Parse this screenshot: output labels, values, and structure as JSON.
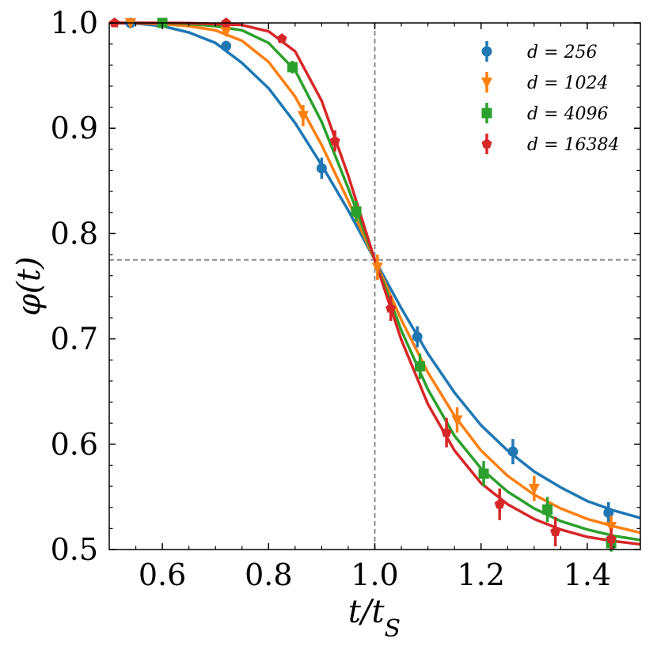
{
  "chart_data": {
    "type": "scatter",
    "xlabel": "t/tS",
    "ylabel": "φ(t)",
    "xlim": [
      0.5,
      1.5
    ],
    "ylim": [
      0.5,
      1.0
    ],
    "xticks": [
      0.6,
      0.8,
      1.0,
      1.2,
      1.4
    ],
    "xtick_labels": [
      "0.6",
      "0.8",
      "1.0",
      "1.2",
      "1.4"
    ],
    "yticks": [
      0.5,
      0.6,
      0.7,
      0.8,
      0.9,
      1.0
    ],
    "ytick_labels": [
      "0.5",
      "0.6",
      "0.7",
      "0.8",
      "0.9",
      "1.0"
    ],
    "reference_lines": {
      "x": 1.0,
      "y": 0.775,
      "style": "dashed",
      "color": "#808080"
    },
    "legend_position": "top-right",
    "grid": false,
    "series": [
      {
        "name": "d = 256",
        "color": "#1f77b4",
        "marker": "circle",
        "points": [
          {
            "x": 0.54,
            "y": 1.0,
            "err": 0.002
          },
          {
            "x": 0.72,
            "y": 0.978,
            "err": 0.005
          },
          {
            "x": 0.9,
            "y": 0.862,
            "err": 0.01
          },
          {
            "x": 1.08,
            "y": 0.702,
            "err": 0.01
          },
          {
            "x": 1.26,
            "y": 0.593,
            "err": 0.012
          },
          {
            "x": 1.44,
            "y": 0.535,
            "err": 0.01
          }
        ],
        "curve": [
          {
            "x": 0.5,
            "y": 0.9998
          },
          {
            "x": 0.55,
            "y": 0.9995
          },
          {
            "x": 0.6,
            "y": 0.997
          },
          {
            "x": 0.65,
            "y": 0.991
          },
          {
            "x": 0.7,
            "y": 0.981
          },
          {
            "x": 0.75,
            "y": 0.962
          },
          {
            "x": 0.8,
            "y": 0.938
          },
          {
            "x": 0.85,
            "y": 0.905
          },
          {
            "x": 0.9,
            "y": 0.865
          },
          {
            "x": 0.95,
            "y": 0.822
          },
          {
            "x": 1.0,
            "y": 0.775
          },
          {
            "x": 1.05,
            "y": 0.729
          },
          {
            "x": 1.1,
            "y": 0.686
          },
          {
            "x": 1.15,
            "y": 0.649
          },
          {
            "x": 1.2,
            "y": 0.618
          },
          {
            "x": 1.25,
            "y": 0.594
          },
          {
            "x": 1.3,
            "y": 0.574
          },
          {
            "x": 1.35,
            "y": 0.559
          },
          {
            "x": 1.4,
            "y": 0.546
          },
          {
            "x": 1.45,
            "y": 0.537
          },
          {
            "x": 1.5,
            "y": 0.53
          }
        ]
      },
      {
        "name": "d = 1024",
        "color": "#ff7f0e",
        "marker": "triangle-down",
        "points": [
          {
            "x": 0.54,
            "y": 1.0,
            "err": 0.002
          },
          {
            "x": 0.72,
            "y": 0.992,
            "err": 0.004
          },
          {
            "x": 0.865,
            "y": 0.912,
            "err": 0.01
          },
          {
            "x": 1.005,
            "y": 0.768,
            "err": 0.012
          },
          {
            "x": 1.155,
            "y": 0.623,
            "err": 0.012
          },
          {
            "x": 1.3,
            "y": 0.558,
            "err": 0.012
          },
          {
            "x": 1.445,
            "y": 0.522,
            "err": 0.01
          }
        ],
        "curve": [
          {
            "x": 0.5,
            "y": 1.0
          },
          {
            "x": 0.55,
            "y": 0.9998
          },
          {
            "x": 0.6,
            "y": 0.999
          },
          {
            "x": 0.65,
            "y": 0.997
          },
          {
            "x": 0.7,
            "y": 0.993
          },
          {
            "x": 0.75,
            "y": 0.983
          },
          {
            "x": 0.8,
            "y": 0.963
          },
          {
            "x": 0.85,
            "y": 0.93
          },
          {
            "x": 0.9,
            "y": 0.884
          },
          {
            "x": 0.95,
            "y": 0.831
          },
          {
            "x": 1.0,
            "y": 0.775
          },
          {
            "x": 1.05,
            "y": 0.718
          },
          {
            "x": 1.1,
            "y": 0.668
          },
          {
            "x": 1.15,
            "y": 0.627
          },
          {
            "x": 1.2,
            "y": 0.594
          },
          {
            "x": 1.25,
            "y": 0.57
          },
          {
            "x": 1.3,
            "y": 0.552
          },
          {
            "x": 1.35,
            "y": 0.539
          },
          {
            "x": 1.4,
            "y": 0.529
          },
          {
            "x": 1.45,
            "y": 0.522
          },
          {
            "x": 1.5,
            "y": 0.516
          }
        ]
      },
      {
        "name": "d = 4096",
        "color": "#2ca02c",
        "marker": "square",
        "points": [
          {
            "x": 0.6,
            "y": 1.0,
            "err": 0.002
          },
          {
            "x": 0.845,
            "y": 0.958,
            "err": 0.006
          },
          {
            "x": 0.965,
            "y": 0.821,
            "err": 0.01
          },
          {
            "x": 1.085,
            "y": 0.674,
            "err": 0.012
          },
          {
            "x": 1.205,
            "y": 0.572,
            "err": 0.012
          },
          {
            "x": 1.325,
            "y": 0.538,
            "err": 0.012
          },
          {
            "x": 1.445,
            "y": 0.506,
            "err": 0.008
          }
        ],
        "curve": [
          {
            "x": 0.5,
            "y": 1.0
          },
          {
            "x": 0.55,
            "y": 1.0
          },
          {
            "x": 0.6,
            "y": 0.9998
          },
          {
            "x": 0.65,
            "y": 0.999
          },
          {
            "x": 0.7,
            "y": 0.997
          },
          {
            "x": 0.75,
            "y": 0.993
          },
          {
            "x": 0.8,
            "y": 0.981
          },
          {
            "x": 0.85,
            "y": 0.955
          },
          {
            "x": 0.9,
            "y": 0.906
          },
          {
            "x": 0.95,
            "y": 0.843
          },
          {
            "x": 1.0,
            "y": 0.775
          },
          {
            "x": 1.05,
            "y": 0.708
          },
          {
            "x": 1.1,
            "y": 0.652
          },
          {
            "x": 1.15,
            "y": 0.608
          },
          {
            "x": 1.2,
            "y": 0.577
          },
          {
            "x": 1.25,
            "y": 0.555
          },
          {
            "x": 1.3,
            "y": 0.539
          },
          {
            "x": 1.35,
            "y": 0.527
          },
          {
            "x": 1.4,
            "y": 0.519
          },
          {
            "x": 1.45,
            "y": 0.513
          },
          {
            "x": 1.5,
            "y": 0.509
          }
        ]
      },
      {
        "name": "d = 16384",
        "color": "#d62728",
        "marker": "pentagon",
        "points": [
          {
            "x": 0.51,
            "y": 1.0,
            "err": 0.002
          },
          {
            "x": 0.72,
            "y": 1.0,
            "err": 0.002
          },
          {
            "x": 0.825,
            "y": 0.985,
            "err": 0.004
          },
          {
            "x": 0.925,
            "y": 0.888,
            "err": 0.01
          },
          {
            "x": 1.03,
            "y": 0.729,
            "err": 0.012
          },
          {
            "x": 1.135,
            "y": 0.611,
            "err": 0.014
          },
          {
            "x": 1.235,
            "y": 0.543,
            "err": 0.015
          },
          {
            "x": 1.34,
            "y": 0.517,
            "err": 0.014
          },
          {
            "x": 1.445,
            "y": 0.51,
            "err": 0.01
          }
        ],
        "curve": [
          {
            "x": 0.5,
            "y": 1.0
          },
          {
            "x": 0.55,
            "y": 1.0
          },
          {
            "x": 0.6,
            "y": 1.0
          },
          {
            "x": 0.65,
            "y": 0.9998
          },
          {
            "x": 0.7,
            "y": 0.999
          },
          {
            "x": 0.75,
            "y": 0.998
          },
          {
            "x": 0.8,
            "y": 0.992
          },
          {
            "x": 0.85,
            "y": 0.973
          },
          {
            "x": 0.9,
            "y": 0.926
          },
          {
            "x": 0.95,
            "y": 0.855
          },
          {
            "x": 1.0,
            "y": 0.775
          },
          {
            "x": 1.05,
            "y": 0.699
          },
          {
            "x": 1.1,
            "y": 0.638
          },
          {
            "x": 1.15,
            "y": 0.594
          },
          {
            "x": 1.2,
            "y": 0.563
          },
          {
            "x": 1.25,
            "y": 0.543
          },
          {
            "x": 1.3,
            "y": 0.529
          },
          {
            "x": 1.35,
            "y": 0.519
          },
          {
            "x": 1.4,
            "y": 0.512
          },
          {
            "x": 1.45,
            "y": 0.508
          },
          {
            "x": 1.5,
            "y": 0.505
          }
        ]
      }
    ]
  }
}
